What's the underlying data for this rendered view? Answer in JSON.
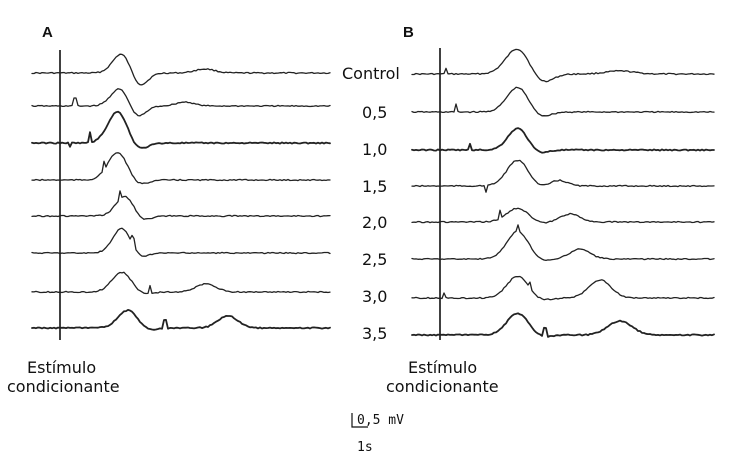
{
  "panels": [
    {
      "label": "A"
    },
    {
      "label": "B"
    }
  ],
  "rows": [
    {
      "label": "Control"
    },
    {
      "label": "0,5"
    },
    {
      "label": "1,0"
    },
    {
      "label": "1,5"
    },
    {
      "label": "2,0"
    },
    {
      "label": "2,5"
    },
    {
      "label": "3,0"
    },
    {
      "label": "3,5"
    }
  ],
  "stimulus_label": {
    "line1": "Estímulo",
    "line2": "condicionante"
  },
  "scale": {
    "voltage": "0,5 mV",
    "time": "1s"
  }
}
